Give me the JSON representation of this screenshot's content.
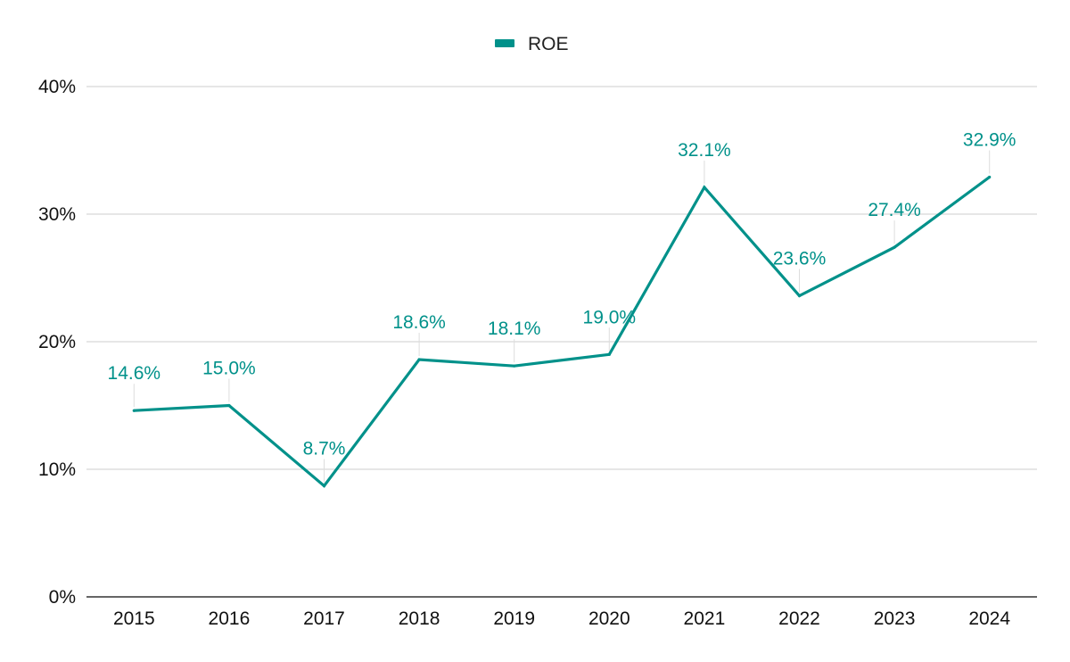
{
  "chart_data": {
    "type": "line",
    "title": "",
    "xlabel": "",
    "ylabel": "",
    "categories": [
      "2015",
      "2016",
      "2017",
      "2018",
      "2019",
      "2020",
      "2021",
      "2022",
      "2023",
      "2024"
    ],
    "series": [
      {
        "name": "ROE",
        "values": [
          14.6,
          15.0,
          8.7,
          18.6,
          18.1,
          19.0,
          32.1,
          23.6,
          27.4,
          32.9
        ],
        "labels": [
          "14.6%",
          "15.0%",
          "8.7%",
          "18.6%",
          "18.1%",
          "19.0%",
          "32.1%",
          "23.6%",
          "27.4%",
          "32.9%"
        ],
        "color": "#00918a"
      }
    ],
    "ylim": [
      0,
      40
    ],
    "yticks": [
      0,
      10,
      20,
      30,
      40
    ],
    "ytick_labels": [
      "0%",
      "10%",
      "20%",
      "30%",
      "40%"
    ],
    "grid": true,
    "legend": "top-center",
    "colors": {
      "grid": "#cccccc",
      "axis": "#333333",
      "leader": "#dddddd"
    }
  }
}
